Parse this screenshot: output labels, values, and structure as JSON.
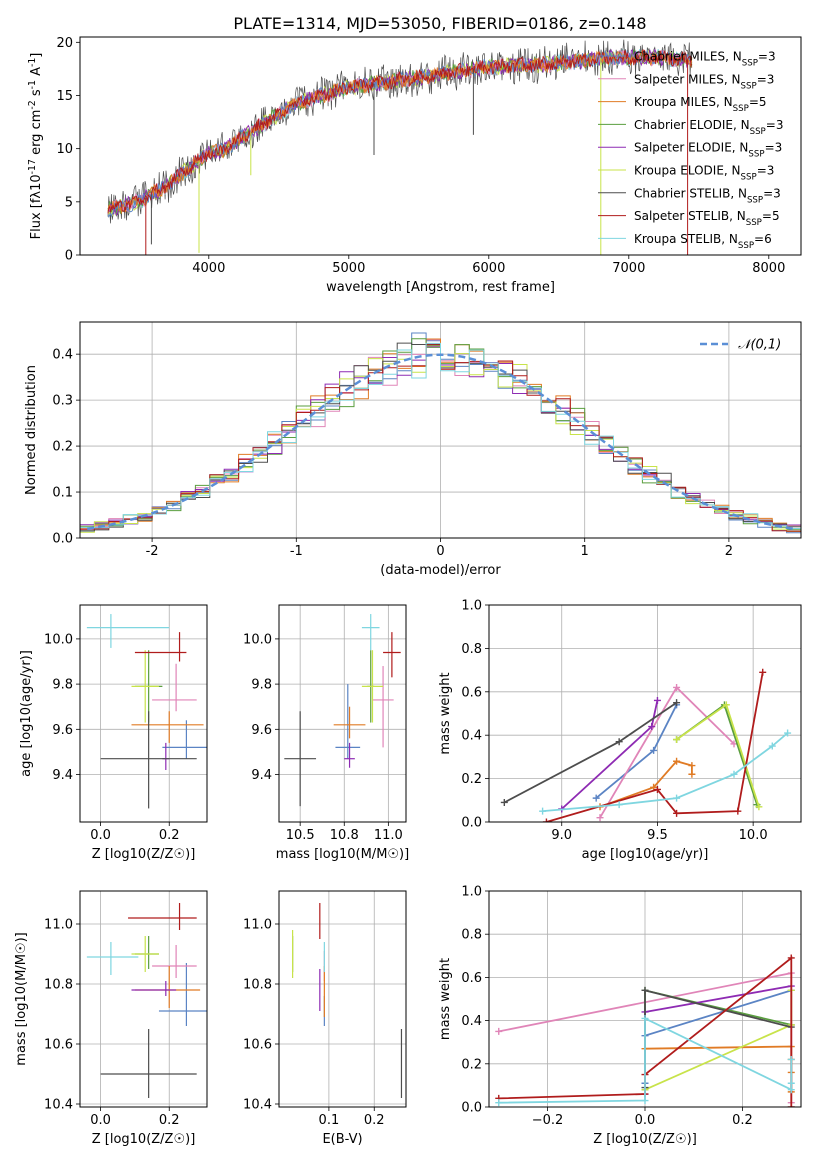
{
  "figure": {
    "title": "PLATE=1314, MJD=53050, FIBERID=0186, z=0.148"
  },
  "chart_data": [
    {
      "id": "spectrum",
      "type": "line",
      "title": "PLATE=1314, MJD=53050, FIBERID=0186, z=0.148",
      "xlabel": "wavelength [Angstrom, rest frame]",
      "ylabel": "Flux [f_λ10^-17 erg cm^-2 s^-1 A^-1]",
      "xlim": [
        3080,
        8230
      ],
      "ylim": [
        0,
        20.5
      ],
      "xticks": [
        4000,
        5000,
        6000,
        7000,
        8000
      ],
      "yticks": [
        0,
        5,
        10,
        15,
        20
      ],
      "grid": false,
      "legend_position": "top-right",
      "continuum": {
        "x": [
          3280,
          3500,
          3700,
          3900,
          4000,
          4100,
          4300,
          4600,
          5000,
          5300,
          5600,
          6000,
          6400,
          6800,
          7200,
          7450
        ],
        "y": [
          4.3,
          5.0,
          6.5,
          8.6,
          9.6,
          9.8,
          11.6,
          14.1,
          15.8,
          16.3,
          16.9,
          17.7,
          17.9,
          18.5,
          18.6,
          18.3
        ]
      },
      "dips": [
        {
          "x": 3550,
          "y": 0.0,
          "series": "Salpeter STELIB, N_SSP=5"
        },
        {
          "x": 3590,
          "y": 1.0,
          "series": "Chabrier STELIB, N_SSP=3"
        },
        {
          "x": 3930,
          "y": 0.2,
          "series": "Kroupa ELODIE, N_SSP=3"
        },
        {
          "x": 4300,
          "y": 7.5,
          "series": "Kroupa ELODIE, N_SSP=3"
        },
        {
          "x": 5180,
          "y": 9.4,
          "series": "Chabrier STELIB, N_SSP=3"
        },
        {
          "x": 5890,
          "y": 11.3,
          "series": "Chabrier STELIB, N_SSP=3"
        },
        {
          "x": 6800,
          "y": 0.0,
          "series": "Kroupa ELODIE, N_SSP=3"
        },
        {
          "x": 7420,
          "y": 0.0,
          "series": "Salpeter STELIB, N_SSP=5"
        }
      ],
      "series": [
        {
          "name": "Chabrier MILES, N_SSP=3",
          "color": "#5b84c4"
        },
        {
          "name": "Salpeter MILES, N_SSP=3",
          "color": "#e085b8"
        },
        {
          "name": "Kroupa MILES, N_SSP=5",
          "color": "#e07b25"
        },
        {
          "name": "Chabrier ELODIE, N_SSP=3",
          "color": "#5a9e3f"
        },
        {
          "name": "Salpeter ELODIE, N_SSP=3",
          "color": "#8e2bb3"
        },
        {
          "name": "Kroupa ELODIE, N_SSP=3",
          "color": "#c8e34a"
        },
        {
          "name": "Chabrier STELIB, N_SSP=3",
          "color": "#4d4d4d"
        },
        {
          "name": "Salpeter STELIB, N_SSP=5",
          "color": "#b01c1c"
        },
        {
          "name": "Kroupa STELIB, N_SSP=6",
          "color": "#7fd6e0"
        }
      ]
    },
    {
      "id": "residuals",
      "type": "line",
      "xlabel": "(data-model)/error",
      "ylabel": "Normed distribution",
      "xlim": [
        -2.5,
        2.5
      ],
      "ylim": [
        0,
        0.47
      ],
      "xticks": [
        -2,
        -1,
        0,
        1,
        2
      ],
      "yticks": [
        0.0,
        0.1,
        0.2,
        0.3,
        0.4
      ],
      "grid": true,
      "legend_position": "top-right",
      "reference": {
        "name": "𝒩(0,1)",
        "color": "#5b8fd6",
        "mean": 0,
        "sigma": 1
      },
      "bin_width": 0.1
    },
    {
      "id": "age-vs-Z",
      "type": "scatter",
      "xlabel": "Z [log10(Z/Z☉)]",
      "ylabel": "age [log10(age/yr)]",
      "xlim": [
        -0.06,
        0.31
      ],
      "ylim": [
        9.19,
        10.15
      ],
      "xticks": [
        0.0,
        0.2
      ],
      "yticks": [
        9.4,
        9.6,
        9.8,
        10.0
      ],
      "grid": true,
      "points": [
        {
          "series": "Chabrier MILES, N_SSP=3",
          "x": 0.25,
          "y": 9.52,
          "xerr": [
            0.07,
            0.07
          ],
          "yerr": [
            0.05,
            0.12
          ]
        },
        {
          "series": "Salpeter MILES, N_SSP=3",
          "x": 0.22,
          "y": 9.73,
          "xerr": [
            0.07,
            0.06
          ],
          "yerr": [
            0.05,
            0.16
          ]
        },
        {
          "series": "Kroupa MILES, N_SSP=5",
          "x": 0.2,
          "y": 9.62,
          "xerr": [
            0.11,
            0.1
          ],
          "yerr": [
            0.08,
            0.06
          ]
        },
        {
          "series": "Chabrier ELODIE, N_SSP=3",
          "x": 0.14,
          "y": 9.79,
          "xerr": [
            0.04,
            0.04
          ],
          "yerr": [
            0.16,
            0.16
          ]
        },
        {
          "series": "Salpeter ELODIE, N_SSP=3",
          "x": 0.19,
          "y": 9.47,
          "xerr": [
            0.01,
            0.01
          ],
          "yerr": [
            0.05,
            0.07
          ]
        },
        {
          "series": "Kroupa ELODIE, N_SSP=3",
          "x": 0.13,
          "y": 9.79,
          "xerr": [
            0.04,
            0.04
          ],
          "yerr": [
            0.16,
            0.16
          ]
        },
        {
          "series": "Chabrier STELIB, N_SSP=3",
          "x": 0.14,
          "y": 9.47,
          "xerr": [
            0.14,
            0.14
          ],
          "yerr": [
            0.22,
            0.21
          ]
        },
        {
          "series": "Salpeter STELIB, N_SSP=5",
          "x": 0.23,
          "y": 9.94,
          "xerr": [
            0.13,
            0.02
          ],
          "yerr": [
            0.04,
            0.09
          ]
        },
        {
          "series": "Kroupa STELIB, N_SSP=6",
          "x": 0.03,
          "y": 10.05,
          "xerr": [
            0.07,
            0.17
          ],
          "yerr": [
            0.09,
            0.06
          ]
        }
      ]
    },
    {
      "id": "age-vs-mass",
      "type": "scatter",
      "xlabel": "mass [log10(M/M☉)]",
      "ylabel": "",
      "xlim": [
        10.38,
        11.1
      ],
      "ylim": [
        9.19,
        10.15
      ],
      "xticks": [
        10.5,
        10.75,
        11.0
      ],
      "yticks": [
        9.4,
        9.6,
        9.8,
        10.0
      ],
      "grid": true,
      "points": [
        {
          "series": "Chabrier MILES, N_SSP=3",
          "x": 10.77,
          "y": 9.52,
          "xerr": [
            0.07,
            0.07
          ],
          "yerr": [
            0.05,
            0.28
          ]
        },
        {
          "series": "Salpeter MILES, N_SSP=3",
          "x": 10.97,
          "y": 9.73,
          "xerr": [
            0.06,
            0.06
          ],
          "yerr": [
            0.21,
            0.15
          ]
        },
        {
          "series": "Kroupa MILES, N_SSP=5",
          "x": 10.78,
          "y": 9.62,
          "xerr": [
            0.09,
            0.09
          ],
          "yerr": [
            0.06,
            0.08
          ]
        },
        {
          "series": "Chabrier ELODIE, N_SSP=3",
          "x": 10.9,
          "y": 9.79,
          "xerr": [
            0.02,
            0.02
          ],
          "yerr": [
            0.16,
            0.16
          ]
        },
        {
          "series": "Salpeter ELODIE, N_SSP=3",
          "x": 10.78,
          "y": 9.47,
          "xerr": [
            0.03,
            0.03
          ],
          "yerr": [
            0.04,
            0.07
          ]
        },
        {
          "series": "Kroupa ELODIE, N_SSP=3",
          "x": 10.91,
          "y": 9.79,
          "xerr": [
            0.06,
            0.06
          ],
          "yerr": [
            0.16,
            0.16
          ]
        },
        {
          "series": "Chabrier STELIB, N_SSP=3",
          "x": 10.5,
          "y": 9.47,
          "xerr": [
            0.09,
            0.09
          ],
          "yerr": [
            0.21,
            0.21
          ]
        },
        {
          "series": "Salpeter STELIB, N_SSP=5",
          "x": 11.02,
          "y": 9.94,
          "xerr": [
            0.05,
            0.05
          ],
          "yerr": [
            0.11,
            0.09
          ]
        },
        {
          "series": "Kroupa STELIB, N_SSP=6",
          "x": 10.9,
          "y": 10.05,
          "xerr": [
            0.05,
            0.05
          ],
          "yerr": [
            0.1,
            0.06
          ]
        }
      ]
    },
    {
      "id": "massweight-vs-age",
      "type": "line",
      "xlabel": "age [log10(age/yr)]",
      "ylabel": "mass weight",
      "xlim": [
        8.62,
        10.25
      ],
      "ylim": [
        0.0,
        1.0
      ],
      "xticks": [
        9.0,
        9.5,
        10.0
      ],
      "yticks": [
        0.0,
        0.2,
        0.4,
        0.6,
        0.8,
        1.0
      ],
      "grid": true,
      "series": [
        {
          "name": "Chabrier MILES, N_SSP=3",
          "x": [
            9.18,
            9.48,
            9.6
          ],
          "y": [
            0.11,
            0.33,
            0.54
          ]
        },
        {
          "name": "Salpeter MILES, N_SSP=3",
          "x": [
            9.2,
            9.6,
            9.9
          ],
          "y": [
            0.02,
            0.62,
            0.36
          ]
        },
        {
          "name": "Kroupa MILES, N_SSP=5",
          "x": [
            9.2,
            9.48,
            9.6,
            9.68,
            9.68
          ],
          "y": [
            0.07,
            0.16,
            0.28,
            0.26,
            0.22
          ]
        },
        {
          "name": "Chabrier ELODIE, N_SSP=3",
          "x": [
            9.6,
            9.85,
            10.02
          ],
          "y": [
            0.38,
            0.54,
            0.08
          ]
        },
        {
          "name": "Salpeter ELODIE, N_SSP=3",
          "x": [
            9.0,
            9.47,
            9.5
          ],
          "y": [
            0.06,
            0.44,
            0.56
          ]
        },
        {
          "name": "Kroupa ELODIE, N_SSP=3",
          "x": [
            9.6,
            9.86,
            10.03
          ],
          "y": [
            0.38,
            0.54,
            0.07
          ]
        },
        {
          "name": "Chabrier STELIB, N_SSP=3",
          "x": [
            8.7,
            9.3,
            9.6
          ],
          "y": [
            0.09,
            0.37,
            0.55
          ]
        },
        {
          "name": "Salpeter STELIB, N_SSP=5",
          "x": [
            8.92,
            9.5,
            9.6,
            9.92,
            10.05
          ],
          "y": [
            0.0,
            0.15,
            0.04,
            0.05,
            0.69
          ]
        },
        {
          "name": "Kroupa STELIB, N_SSP=6",
          "x": [
            8.9,
            9.3,
            9.6,
            9.9,
            10.1,
            10.18
          ],
          "y": [
            0.05,
            0.08,
            0.11,
            0.22,
            0.35,
            0.41
          ]
        }
      ]
    },
    {
      "id": "mass-vs-Z",
      "type": "scatter",
      "xlabel": "Z [log10(Z/Z☉)]",
      "ylabel": "mass [log10(M/M☉)]",
      "xlim": [
        -0.06,
        0.31
      ],
      "ylim": [
        10.39,
        11.11
      ],
      "xticks": [
        0.0,
        0.2
      ],
      "yticks": [
        10.4,
        10.6,
        10.8,
        11.0
      ],
      "grid": true,
      "points": [
        {
          "series": "Chabrier MILES, N_SSP=3",
          "x": 0.25,
          "y": 10.71,
          "xerr": [
            0.08,
            0.07
          ],
          "yerr": [
            0.05,
            0.16
          ]
        },
        {
          "series": "Salpeter MILES, N_SSP=3",
          "x": 0.22,
          "y": 10.86,
          "xerr": [
            0.07,
            0.06
          ],
          "yerr": [
            0.04,
            0.07
          ]
        },
        {
          "series": "Kroupa MILES, N_SSP=5",
          "x": 0.2,
          "y": 10.78,
          "xerr": [
            0.1,
            0.09
          ],
          "yerr": [
            0.06,
            0.08
          ]
        },
        {
          "series": "Chabrier ELODIE, N_SSP=3",
          "x": 0.14,
          "y": 10.9,
          "xerr": [
            0.04,
            0.03
          ],
          "yerr": [
            0.05,
            0.06
          ]
        },
        {
          "series": "Salpeter ELODIE, N_SSP=3",
          "x": 0.19,
          "y": 10.78,
          "xerr": [
            0.1,
            0.03
          ],
          "yerr": [
            0.02,
            0.03
          ]
        },
        {
          "series": "Kroupa ELODIE, N_SSP=3",
          "x": 0.13,
          "y": 10.9,
          "xerr": [
            0.04,
            0.04
          ],
          "yerr": [
            0.06,
            0.06
          ]
        },
        {
          "series": "Chabrier STELIB, N_SSP=3",
          "x": 0.14,
          "y": 10.5,
          "xerr": [
            0.14,
            0.14
          ],
          "yerr": [
            0.08,
            0.15
          ]
        },
        {
          "series": "Salpeter STELIB, N_SSP=5",
          "x": 0.23,
          "y": 11.02,
          "xerr": [
            0.15,
            0.05
          ],
          "yerr": [
            0.04,
            0.05
          ]
        },
        {
          "series": "Kroupa STELIB, N_SSP=6",
          "x": 0.03,
          "y": 10.89,
          "xerr": [
            0.07,
            0.08
          ],
          "yerr": [
            0.06,
            0.05
          ]
        }
      ]
    },
    {
      "id": "mass-vs-EBV",
      "type": "scatter",
      "xlabel": "E(B-V)",
      "ylabel": "",
      "xlim": [
        -0.01,
        0.27
      ],
      "ylim": [
        10.39,
        11.11
      ],
      "xticks": [
        0.1,
        0.2
      ],
      "yticks": [
        10.4,
        10.6,
        10.8,
        11.0
      ],
      "grid": true,
      "points": [
        {
          "series": "Chabrier MILES, N_SSP=3",
          "x": 0.09,
          "y": 10.71,
          "xerr": [
            0.0,
            0.0
          ],
          "yerr": [
            0.05,
            0.05
          ]
        },
        {
          "series": "Salpeter MILES, N_SSP=3",
          "x": 0.09,
          "y": 10.86,
          "xerr": [
            0.0,
            0.0
          ],
          "yerr": [
            0.05,
            0.05
          ]
        },
        {
          "series": "Kroupa MILES, N_SSP=5",
          "x": 0.09,
          "y": 10.78,
          "xerr": [
            0.0,
            0.0
          ],
          "yerr": [
            0.09,
            0.08
          ]
        },
        {
          "series": "Chabrier ELODIE, N_SSP=3",
          "x": 0.02,
          "y": 10.9,
          "xerr": [
            0.0,
            0.0
          ],
          "yerr": [
            0.06,
            0.06
          ]
        },
        {
          "series": "Salpeter ELODIE, N_SSP=3",
          "x": 0.08,
          "y": 10.78,
          "xerr": [
            0.0,
            0.0
          ],
          "yerr": [
            0.07,
            0.07
          ]
        },
        {
          "series": "Kroupa ELODIE, N_SSP=3",
          "x": 0.02,
          "y": 10.9,
          "xerr": [
            0.0,
            0.0
          ],
          "yerr": [
            0.08,
            0.08
          ]
        },
        {
          "series": "Chabrier STELIB, N_SSP=3",
          "x": 0.26,
          "y": 10.5,
          "xerr": [
            0.0,
            0.0
          ],
          "yerr": [
            0.08,
            0.15
          ]
        },
        {
          "series": "Salpeter STELIB, N_SSP=5",
          "x": 0.08,
          "y": 11.02,
          "xerr": [
            0.0,
            0.0
          ],
          "yerr": [
            0.07,
            0.05
          ]
        },
        {
          "series": "Kroupa STELIB, N_SSP=6",
          "x": 0.09,
          "y": 10.89,
          "xerr": [
            0.0,
            0.0
          ],
          "yerr": [
            0.05,
            0.05
          ]
        }
      ]
    },
    {
      "id": "massweight-vs-Z",
      "type": "line",
      "xlabel": "Z [log10(Z/Z☉)]",
      "ylabel": "mass weight",
      "xlim": [
        -0.32,
        0.32
      ],
      "ylim": [
        0.0,
        1.0
      ],
      "xticks": [
        -0.2,
        0.0,
        0.2
      ],
      "yticks": [
        0.0,
        0.2,
        0.4,
        0.6,
        0.8,
        1.0
      ],
      "grid": true,
      "series": [
        {
          "name": "Chabrier MILES, N_SSP=3",
          "x": [
            0.0,
            0.0,
            0.3
          ],
          "y": [
            0.11,
            0.33,
            0.54
          ]
        },
        {
          "name": "Salpeter MILES, N_SSP=3",
          "x": [
            -0.3,
            0.3,
            0.3
          ],
          "y": [
            0.35,
            0.62,
            0.02
          ]
        },
        {
          "name": "Kroupa MILES, N_SSP=5",
          "x": [
            0.0,
            0.3,
            0.3,
            0.3,
            0.3
          ],
          "y": [
            0.27,
            0.28,
            0.22,
            0.16,
            0.07
          ]
        },
        {
          "name": "Chabrier ELODIE, N_SSP=3",
          "x": [
            0.0,
            0.0,
            0.3
          ],
          "y": [
            0.08,
            0.54,
            0.38
          ]
        },
        {
          "name": "Salpeter ELODIE, N_SSP=3",
          "x": [
            0.0,
            0.0,
            0.3
          ],
          "y": [
            0.06,
            0.44,
            0.56
          ]
        },
        {
          "name": "Kroupa ELODIE, N_SSP=3",
          "x": [
            0.0,
            0.3,
            0.3
          ],
          "y": [
            0.08,
            0.38,
            0.54
          ]
        },
        {
          "name": "Chabrier STELIB, N_SSP=3",
          "x": [
            0.0,
            0.0,
            0.3
          ],
          "y": [
            0.09,
            0.54,
            0.37
          ]
        },
        {
          "name": "Salpeter STELIB, N_SSP=5",
          "x": [
            -0.3,
            0.0,
            0.0,
            0.3,
            0.3
          ],
          "y": [
            0.04,
            0.06,
            0.15,
            0.69,
            0.0
          ]
        },
        {
          "name": "Kroupa STELIB, N_SSP=6",
          "x": [
            -0.3,
            0.0,
            0.0,
            0.3,
            0.3,
            0.3
          ],
          "y": [
            0.02,
            0.03,
            0.41,
            0.08,
            0.11,
            0.22
          ]
        }
      ]
    }
  ]
}
